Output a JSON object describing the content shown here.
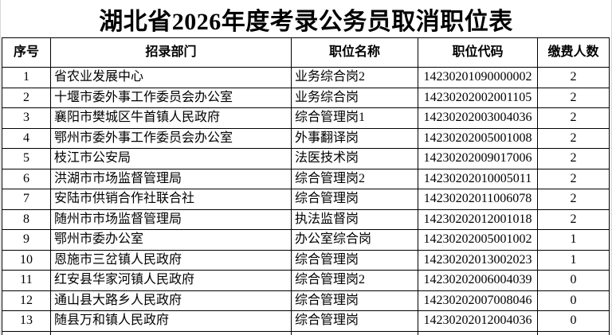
{
  "page": {
    "title": "湖北省2026年度考录公务员取消职位表"
  },
  "table": {
    "columns": {
      "no": "序号",
      "department": "招录部门",
      "position": "职位名称",
      "code": "职位代码",
      "count": "缴费人数"
    },
    "rows": [
      {
        "no": "1",
        "department": "省农业发展中心",
        "position": "业务综合岗2",
        "code": "14230201090000002",
        "count": "2"
      },
      {
        "no": "2",
        "department": "十堰市委外事工作委员会办公室",
        "position": "业务综合岗",
        "code": "14230202002001105",
        "count": "2"
      },
      {
        "no": "3",
        "department": "襄阳市樊城区牛首镇人民政府",
        "position": "综合管理岗1",
        "code": "14230202003004036",
        "count": "2"
      },
      {
        "no": "4",
        "department": "鄂州市委外事工作委员会办公室",
        "position": "外事翻译岗",
        "code": "14230202005001008",
        "count": "2"
      },
      {
        "no": "5",
        "department": "枝江市公安局",
        "position": "法医技术岗",
        "code": "14230202009017006",
        "count": "2"
      },
      {
        "no": "6",
        "department": "洪湖市市场监督管理局",
        "position": "综合管理岗2",
        "code": "14230202010005011",
        "count": "2"
      },
      {
        "no": "7",
        "department": "安陆市供销合作社联合社",
        "position": "综合管理岗",
        "code": "14230202011006078",
        "count": "2"
      },
      {
        "no": "8",
        "department": "随州市市场监督管理局",
        "position": "执法监督岗",
        "code": "14230202012001018",
        "count": "2"
      },
      {
        "no": "9",
        "department": "鄂州市委办公室",
        "position": "办公室综合岗",
        "code": "14230202005001002",
        "count": "1"
      },
      {
        "no": "10",
        "department": "恩施市三岔镇人民政府",
        "position": "综合管理岗",
        "code": "14230202013002023",
        "count": "1"
      },
      {
        "no": "11",
        "department": "红安县华家河镇人民政府",
        "position": "综合管理岗2",
        "code": "14230202006004039",
        "count": "0"
      },
      {
        "no": "12",
        "department": "通山县大路乡人民政府",
        "position": "综合管理岗",
        "code": "14230202007008046",
        "count": "0"
      },
      {
        "no": "13",
        "department": "随县万和镇人民政府",
        "position": "综合管理岗",
        "code": "14230202012004036",
        "count": "0"
      }
    ]
  }
}
